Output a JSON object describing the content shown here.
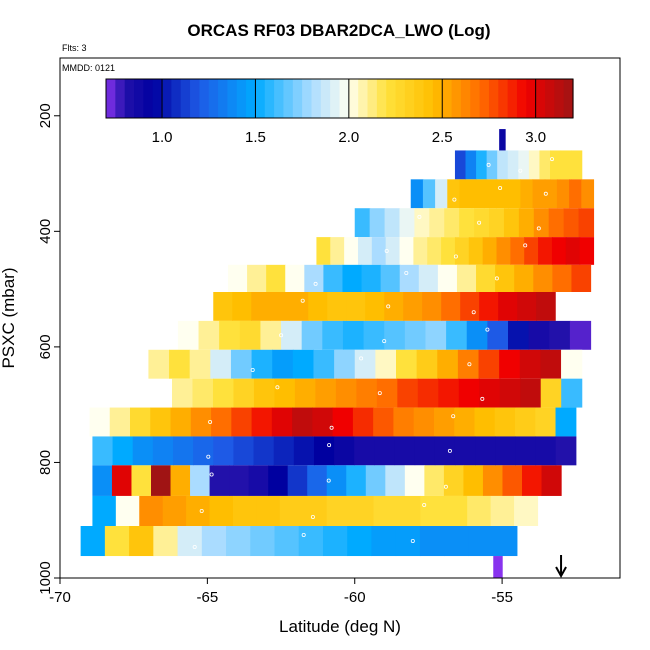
{
  "chart_data": {
    "type": "heatmap",
    "title": "ORCAS RF03 DBAR2DCA_LWO (Log)",
    "annotations": {
      "flights": "Flts: 3",
      "date": "MMDD: 0121"
    },
    "xlabel": "Latitude (deg N)",
    "ylabel": "PSXC (mbar)",
    "xlim": [
      -70,
      -51
    ],
    "ylim": [
      1000,
      100
    ],
    "x_ticks": [
      -70,
      -65,
      -60,
      -55
    ],
    "x_tick_labels": [
      "-70",
      "-65",
      "-60",
      "-55"
    ],
    "y_ticks": [
      200,
      400,
      600,
      800,
      1000
    ],
    "y_tick_labels": [
      "200",
      "400",
      "600",
      "800",
      "1000"
    ],
    "colorbar": {
      "range": [
        0.7,
        3.2
      ],
      "ticks": [
        1.0,
        1.5,
        2.0,
        2.5,
        3.0
      ],
      "tick_labels": [
        "1.0",
        "1.5",
        "2.0",
        "2.5",
        "3.0"
      ]
    },
    "arrow_marker_lat": -53,
    "bands": [
      {
        "p_top": 223,
        "p_bot": 268,
        "lat_start": -55.1,
        "lat_end": -54.9,
        "values": [
          0.9
        ]
      },
      {
        "p_top": 260,
        "p_bot": 310,
        "lat_start": -56.6,
        "lat_end": -52.3,
        "values": [
          1.15,
          1.35,
          1.55,
          1.7,
          1.85,
          1.9,
          1.95,
          2.05,
          2.15,
          2.2,
          2.2,
          2.2
        ]
      },
      {
        "p_top": 310,
        "p_bot": 360,
        "lat_start": -58.1,
        "lat_end": -51.9,
        "values": [
          1.4,
          1.65,
          1.9,
          2.4,
          2.45,
          2.45,
          2.45,
          2.45,
          2.45,
          2.5,
          2.55,
          2.55,
          2.6,
          2.7,
          2.6
        ]
      },
      {
        "p_top": 360,
        "p_bot": 410,
        "lat_start": -60.0,
        "lat_end": -51.9,
        "values": [
          1.6,
          1.75,
          1.85,
          1.95,
          2.05,
          2.1,
          2.15,
          2.2,
          2.25,
          2.3,
          2.4,
          2.5,
          2.6,
          2.7,
          2.75,
          2.8
        ]
      },
      {
        "p_top": 410,
        "p_bot": 458,
        "lat_start": -61.3,
        "lat_end": -51.9,
        "values": [
          2.2,
          2.1,
          2.0,
          1.9,
          1.8,
          1.9,
          2.0,
          2.1,
          2.15,
          2.2,
          2.3,
          2.4,
          2.5,
          2.6,
          2.7,
          2.8,
          2.9,
          2.95,
          3.0,
          2.95
        ]
      },
      {
        "p_top": 458,
        "p_bot": 505,
        "lat_start": -64.3,
        "lat_end": -52.0,
        "values": [
          2.0,
          2.1,
          2.2,
          2.0,
          1.8,
          1.6,
          1.5,
          1.55,
          1.65,
          1.8,
          1.9,
          2.0,
          2.1,
          2.25,
          2.4,
          2.5,
          2.6,
          2.7,
          2.8
        ]
      },
      {
        "p_top": 505,
        "p_bot": 555,
        "lat_start": -64.8,
        "lat_end": -53.2,
        "values": [
          2.4,
          2.45,
          2.5,
          2.5,
          2.5,
          2.45,
          2.4,
          2.4,
          2.45,
          2.5,
          2.55,
          2.6,
          2.7,
          2.8,
          2.9,
          3.0,
          3.05,
          3.1
        ]
      },
      {
        "p_top": 555,
        "p_bot": 605,
        "lat_start": -66.0,
        "lat_end": -52.0,
        "values": [
          2.0,
          2.1,
          2.2,
          2.25,
          2.1,
          1.9,
          1.7,
          1.6,
          1.55,
          1.6,
          1.65,
          1.7,
          1.75,
          1.6,
          1.4,
          1.2,
          1.0,
          0.85,
          0.8,
          0.75
        ]
      },
      {
        "p_top": 605,
        "p_bot": 655,
        "lat_start": -67.0,
        "lat_end": -52.3,
        "values": [
          2.1,
          2.2,
          2.1,
          1.9,
          1.7,
          1.55,
          1.45,
          1.5,
          1.6,
          1.75,
          1.9,
          2.05,
          2.2,
          2.35,
          2.5,
          2.65,
          2.8,
          2.95,
          3.05,
          3.1,
          2.0
        ]
      },
      {
        "p_top": 655,
        "p_bot": 705,
        "lat_start": -66.2,
        "lat_end": -52.3,
        "values": [
          2.1,
          2.15,
          2.2,
          2.3,
          2.4,
          2.45,
          2.5,
          2.55,
          2.6,
          2.65,
          2.7,
          2.8,
          2.85,
          2.9,
          2.95,
          3.0,
          3.05,
          3.1,
          2.3,
          1.6
        ]
      },
      {
        "p_top": 705,
        "p_bot": 755,
        "lat_start": -69.0,
        "lat_end": -52.5,
        "values": [
          2.0,
          2.1,
          2.25,
          2.4,
          2.5,
          2.6,
          2.7,
          2.8,
          2.9,
          3.0,
          3.1,
          3.05,
          2.95,
          2.85,
          2.75,
          2.65,
          2.6,
          2.55,
          2.5,
          2.45,
          2.4,
          2.35,
          2.3,
          1.5
        ]
      },
      {
        "p_top": 755,
        "p_bot": 805,
        "lat_start": -68.9,
        "lat_end": -52.5,
        "values": [
          1.6,
          1.5,
          1.4,
          1.35,
          1.3,
          1.25,
          1.2,
          1.15,
          1.1,
          1.05,
          1.0,
          0.95,
          0.9,
          0.85,
          0.85,
          0.85,
          0.85,
          0.85,
          0.85,
          0.85,
          0.85,
          0.85,
          0.85,
          0.8
        ]
      },
      {
        "p_top": 805,
        "p_bot": 858,
        "lat_start": -68.9,
        "lat_end": -53.0,
        "values": [
          1.4,
          3.0,
          2.2,
          3.2,
          2.5,
          1.8,
          0.8,
          0.8,
          0.85,
          0.95,
          1.1,
          1.25,
          1.4,
          1.55,
          1.7,
          1.85,
          2.0,
          2.15,
          2.3,
          2.45,
          2.6,
          2.75,
          2.9,
          3.05
        ]
      },
      {
        "p_top": 858,
        "p_bot": 910,
        "lat_start": -68.9,
        "lat_end": -53.8,
        "values": [
          1.5,
          2.0,
          2.6,
          2.55,
          2.5,
          2.45,
          2.4,
          2.4,
          2.35,
          2.35,
          2.3,
          2.3,
          2.25,
          2.25,
          2.2,
          2.2,
          2.15,
          2.1,
          2.05
        ]
      },
      {
        "p_top": 910,
        "p_bot": 962,
        "lat_start": -69.3,
        "lat_end": -54.5,
        "values": [
          1.5,
          2.2,
          2.4,
          2.1,
          1.9,
          1.8,
          1.75,
          1.7,
          1.65,
          1.6,
          1.55,
          1.5,
          1.45,
          1.45,
          1.4,
          1.4,
          1.4,
          1.4
        ]
      },
      {
        "p_top": 962,
        "p_bot": 1000,
        "lat_start": -55.3,
        "lat_end": -55.0,
        "values": [
          0.7
        ]
      }
    ]
  }
}
